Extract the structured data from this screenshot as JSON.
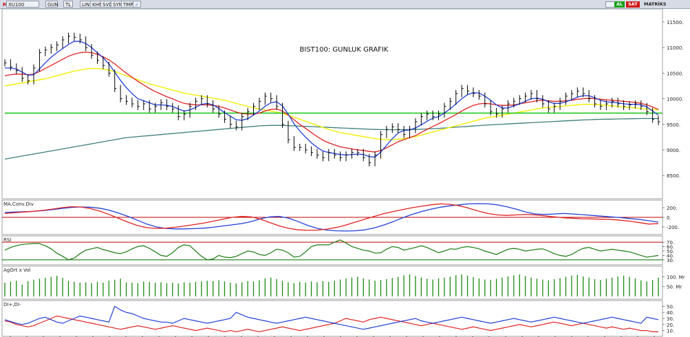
{
  "toolbar": {
    "logo": "M",
    "symbol": "XU100",
    "period": "GUN",
    "currency": "TL",
    "buttons": [
      "LIN",
      "KHN",
      "SVD",
      "SYM",
      "TMP"
    ],
    "al_label": "AL",
    "sat_label": "SAT",
    "matriks_label": "MATRİKS"
  },
  "colors": {
    "price_bars": "#000000",
    "ma_fast": "#1f3fd6",
    "ma_mid": "#e02020",
    "ma_slow": "#f2f000",
    "ma_long": "#3a7d7a",
    "support": "#00c000",
    "macd_blue": "#1f3fd6",
    "macd_red": "#e02020",
    "rsi": "#1a7a10",
    "vol": "#1a8a10",
    "di_plus": "#1f3fd6",
    "di_minus": "#e02020",
    "al_badge": "#18a018",
    "sat_badge": "#d01818"
  },
  "chart_data": [
    {
      "type": "line",
      "title": "BIST100: GUNLUK GRAFIK",
      "ylim": [
        8100,
        11700
      ],
      "yticks": [
        "11500.",
        "11000.",
        "10500.",
        "10000.",
        "9500.",
        "9000.",
        "8500."
      ],
      "ytick_values": [
        11500,
        11000,
        10500,
        10000,
        9500,
        9000,
        8500
      ],
      "support_level": 9720,
      "close": [
        10700,
        10620,
        10550,
        10400,
        10350,
        10600,
        10900,
        10950,
        11000,
        11050,
        11150,
        11220,
        11200,
        11150,
        11000,
        10850,
        10750,
        10650,
        10500,
        10200,
        10000,
        9950,
        9900,
        9850,
        9900,
        9800,
        9850,
        9920,
        9850,
        9800,
        9650,
        9700,
        9850,
        9950,
        10000,
        9900,
        9800,
        9700,
        9600,
        9500,
        9450,
        9650,
        9750,
        9850,
        9950,
        10050,
        10000,
        9850,
        9500,
        9200,
        9050,
        9050,
        9000,
        8950,
        8900,
        8850,
        8950,
        8900,
        8850,
        8900,
        8950,
        8950,
        8850,
        8750,
        8900,
        9300,
        9400,
        9450,
        9400,
        9300,
        9400,
        9550,
        9650,
        9700,
        9650,
        9700,
        9850,
        9950,
        10100,
        10200,
        10150,
        10100,
        10050,
        9900,
        9750,
        9700,
        9800,
        9900,
        9950,
        10000,
        10050,
        10100,
        10000,
        9900,
        9800,
        9850,
        9950,
        10050,
        10100,
        10150,
        10100,
        10000,
        9900,
        9850,
        9900,
        9950,
        9900,
        9850,
        9880,
        9900,
        9850,
        9750,
        9600,
        9550
      ],
      "ma_fast": [
        10600,
        10600,
        10580,
        10520,
        10460,
        10470,
        10580,
        10700,
        10810,
        10900,
        10980,
        11060,
        11120,
        11120,
        11080,
        11000,
        10900,
        10800,
        10680,
        10520,
        10360,
        10220,
        10100,
        10000,
        9960,
        9920,
        9880,
        9880,
        9870,
        9850,
        9800,
        9760,
        9780,
        9830,
        9890,
        9910,
        9880,
        9810,
        9730,
        9660,
        9590,
        9580,
        9610,
        9680,
        9760,
        9850,
        9920,
        9940,
        9860,
        9700,
        9510,
        9370,
        9250,
        9140,
        9050,
        8980,
        8950,
        8930,
        8910,
        8900,
        8910,
        8920,
        8910,
        8870,
        8860,
        8960,
        9090,
        9220,
        9330,
        9380,
        9390,
        9430,
        9490,
        9560,
        9620,
        9650,
        9720,
        9800,
        9900,
        10000,
        10080,
        10120,
        10110,
        10050,
        9970,
        9880,
        9820,
        9820,
        9860,
        9900,
        9950,
        10000,
        10010,
        9990,
        9940,
        9910,
        9910,
        9940,
        9980,
        10030,
        10060,
        10060,
        10020,
        9970,
        9940,
        9930,
        9920,
        9900,
        9890,
        9890,
        9880,
        9840,
        9760,
        9680
      ],
      "ma_mid": [
        10450,
        10470,
        10480,
        10480,
        10470,
        10480,
        10530,
        10590,
        10650,
        10710,
        10770,
        10830,
        10870,
        10900,
        10910,
        10900,
        10870,
        10820,
        10760,
        10680,
        10590,
        10500,
        10420,
        10340,
        10270,
        10200,
        10140,
        10090,
        10040,
        10000,
        9950,
        9910,
        9890,
        9880,
        9880,
        9880,
        9870,
        9850,
        9820,
        9780,
        9740,
        9710,
        9700,
        9700,
        9720,
        9760,
        9790,
        9800,
        9760,
        9680,
        9590,
        9500,
        9420,
        9340,
        9260,
        9190,
        9140,
        9100,
        9060,
        9040,
        9020,
        9000,
        8990,
        8970,
        8960,
        8990,
        9040,
        9100,
        9160,
        9200,
        9240,
        9280,
        9340,
        9400,
        9460,
        9510,
        9570,
        9630,
        9690,
        9760,
        9820,
        9870,
        9900,
        9910,
        9900,
        9880,
        9870,
        9870,
        9880,
        9900,
        9920,
        9940,
        9960,
        9970,
        9960,
        9950,
        9950,
        9960,
        9970,
        9990,
        10000,
        10010,
        10000,
        9990,
        9980,
        9970,
        9960,
        9950,
        9940,
        9930,
        9910,
        9880,
        9840,
        9790
      ],
      "ma_slow": [
        10250,
        10270,
        10290,
        10310,
        10330,
        10350,
        10370,
        10390,
        10420,
        10450,
        10480,
        10510,
        10540,
        10560,
        10580,
        10590,
        10590,
        10580,
        10560,
        10530,
        10490,
        10450,
        10410,
        10370,
        10330,
        10290,
        10260,
        10230,
        10200,
        10170,
        10140,
        10110,
        10090,
        10070,
        10050,
        10030,
        10010,
        9990,
        9970,
        9940,
        9910,
        9880,
        9850,
        9820,
        9800,
        9780,
        9760,
        9740,
        9710,
        9680,
        9640,
        9600,
        9560,
        9520,
        9480,
        9440,
        9400,
        9370,
        9340,
        9320,
        9300,
        9280,
        9260,
        9240,
        9220,
        9210,
        9200,
        9200,
        9210,
        9220,
        9240,
        9260,
        9290,
        9320,
        9350,
        9380,
        9410,
        9440,
        9470,
        9500,
        9530,
        9560,
        9590,
        9620,
        9640,
        9660,
        9680,
        9700,
        9720,
        9740,
        9760,
        9780,
        9800,
        9820,
        9830,
        9840,
        9850,
        9860,
        9870,
        9880,
        9890,
        9890,
        9890,
        9880,
        9870,
        9860,
        9850,
        9840,
        9830,
        9820,
        9810,
        9800,
        9790,
        9780
      ],
      "ma_long": [
        8820,
        8840,
        8860,
        8880,
        8900,
        8920,
        8940,
        8960,
        8980,
        9000,
        9020,
        9040,
        9060,
        9080,
        9100,
        9120,
        9140,
        9160,
        9180,
        9200,
        9220,
        9240,
        9250,
        9260,
        9270,
        9280,
        9290,
        9300,
        9310,
        9320,
        9330,
        9340,
        9350,
        9360,
        9370,
        9380,
        9390,
        9400,
        9410,
        9420,
        9430,
        9440,
        9450,
        9460,
        9470,
        9475,
        9480,
        9480,
        9480,
        9475,
        9470,
        9465,
        9460,
        9455,
        9450,
        9445,
        9440,
        9435,
        9430,
        9425,
        9420,
        9415,
        9410,
        9405,
        9400,
        9398,
        9396,
        9395,
        9395,
        9396,
        9398,
        9400,
        9405,
        9410,
        9415,
        9420,
        9428,
        9436,
        9444,
        9452,
        9460,
        9468,
        9476,
        9484,
        9490,
        9496,
        9502,
        9508,
        9514,
        9520,
        9526,
        9532,
        9538,
        9544,
        9550,
        9556,
        9562,
        9568,
        9574,
        9580,
        9585,
        9590,
        9595,
        9598,
        9600,
        9602,
        9604,
        9606,
        9608,
        9610,
        9612,
        9612,
        9612,
        9612
      ]
    },
    {
      "type": "line",
      "title": "MA.Conv.Div",
      "ylim": [
        -300,
        300
      ],
      "yticks": [
        "200.",
        "0.",
        "-200."
      ],
      "ytick_values": [
        200,
        0,
        -200
      ],
      "series": [
        {
          "values": [
            100,
            110,
            115,
            125,
            140,
            160,
            185,
            205,
            215,
            210,
            190,
            150,
            90,
            20,
            -60,
            -140,
            -200,
            -230,
            -240,
            -240,
            -235,
            -225,
            -205,
            -180,
            -155,
            -130,
            -90,
            -30,
            10,
            20,
            -20,
            -90,
            -170,
            -230,
            -265,
            -280,
            -285,
            -280,
            -260,
            -220,
            -160,
            -90,
            -10,
            60,
            120,
            170,
            210,
            240,
            260,
            280,
            285,
            280,
            260,
            220,
            170,
            110,
            70,
            60,
            70,
            80,
            70,
            55,
            40,
            25,
            10,
            -5,
            -25,
            -45,
            -70,
            -100
          ]
        },
        {
          "values": [
            80,
            95,
            110,
            125,
            145,
            170,
            200,
            220,
            215,
            185,
            130,
            60,
            -20,
            -100,
            -170,
            -215,
            -230,
            -225,
            -205,
            -180,
            -150,
            -120,
            -80,
            -40,
            0,
            20,
            10,
            -40,
            -110,
            -180,
            -230,
            -260,
            -270,
            -265,
            -245,
            -210,
            -160,
            -100,
            -40,
            20,
            75,
            120,
            160,
            200,
            230,
            260,
            280,
            270,
            240,
            190,
            130,
            80,
            50,
            40,
            50,
            60,
            50,
            30,
            10,
            -10,
            -20,
            -30,
            -35,
            -40,
            -45,
            -60,
            -80,
            -110,
            -140,
            -130
          ]
        }
      ]
    },
    {
      "type": "line",
      "title": "RSI",
      "ylim": [
        25,
        78
      ],
      "yticks": [
        "70.",
        "60.",
        "50.",
        "40.",
        "30."
      ],
      "ytick_values": [
        70,
        60,
        50,
        40,
        30
      ],
      "bands": [
        70,
        30
      ],
      "values": [
        52,
        58,
        62,
        65,
        66,
        67,
        67,
        62,
        55,
        45,
        38,
        30,
        34,
        44,
        52,
        55,
        58,
        53,
        50,
        46,
        44,
        48,
        55,
        60,
        62,
        56,
        48,
        40,
        38,
        46,
        58,
        64,
        62,
        50,
        38,
        30,
        32,
        40,
        36,
        35,
        38,
        44,
        50,
        48,
        42,
        40,
        46,
        54,
        52,
        46,
        36,
        38,
        48,
        60,
        64,
        64,
        64,
        70,
        75,
        68,
        60,
        56,
        52,
        50,
        45,
        46,
        54,
        60,
        58,
        52,
        55,
        58,
        62,
        58,
        52,
        46,
        50,
        55,
        54,
        58,
        60,
        58,
        55,
        50,
        46,
        42,
        48,
        54,
        56,
        54,
        50,
        52,
        54,
        55,
        50,
        44,
        40,
        38,
        42,
        50,
        56,
        58,
        54,
        50,
        52,
        54,
        52,
        50,
        48,
        44,
        40,
        36,
        38,
        40
      ]
    },
    {
      "type": "bar",
      "title": "AgOrt x Vol",
      "ylim": [
        0,
        140
      ],
      "yticks": [
        "100. Mr",
        "50. Mr"
      ],
      "ytick_values": [
        100,
        50
      ],
      "values": [
        70,
        75,
        80,
        60,
        78,
        85,
        90,
        95,
        100,
        105,
        95,
        80,
        75,
        70,
        72,
        68,
        74,
        70,
        80,
        85,
        90,
        72,
        70,
        68,
        75,
        74,
        70,
        72,
        68,
        70,
        66,
        72,
        70,
        74,
        76,
        80,
        78,
        82,
        76,
        70,
        66,
        72,
        78,
        76,
        82,
        92,
        96,
        88,
        80,
        72,
        68,
        74,
        70,
        76,
        72,
        78,
        74,
        80,
        86,
        92,
        96,
        100,
        92,
        86,
        80,
        84,
        88,
        94,
        100,
        108,
        112,
        104,
        96,
        90,
        86,
        92,
        96,
        100,
        108,
        112,
        106,
        98,
        92,
        86,
        84,
        90,
        96,
        102,
        108,
        112,
        104,
        96,
        90,
        86,
        82,
        88,
        94,
        100,
        106,
        110,
        102,
        96,
        88,
        84,
        90,
        96,
        102,
        106,
        100,
        92,
        82,
        76,
        84,
        96
      ]
    },
    {
      "type": "line",
      "title": "DI+,DI-",
      "ylim": [
        5,
        55
      ],
      "yticks": [
        "50.",
        "40.",
        "30.",
        "20.",
        "10."
      ],
      "ytick_values": [
        50,
        40,
        30,
        20,
        10
      ],
      "series": [
        {
          "values": [
            28,
            25,
            22,
            20,
            22,
            26,
            30,
            32,
            28,
            24,
            22,
            26,
            30,
            34,
            32,
            30,
            28,
            26,
            24,
            50,
            44,
            40,
            38,
            34,
            30,
            28,
            26,
            24,
            24,
            22,
            26,
            30,
            28,
            26,
            24,
            22,
            24,
            26,
            28,
            30,
            40,
            36,
            32,
            30,
            28,
            26,
            24,
            22,
            24,
            26,
            28,
            30,
            32,
            30,
            28,
            26,
            24,
            22,
            20,
            18,
            16,
            14,
            12,
            14,
            16,
            18,
            20,
            22,
            24,
            26,
            28,
            30,
            26,
            24,
            22,
            24,
            26,
            28,
            30,
            32,
            30,
            28,
            26,
            24,
            22,
            24,
            26,
            28,
            30,
            28,
            26,
            24,
            26,
            28,
            30,
            32,
            30,
            28,
            26,
            24,
            22,
            24,
            26,
            28,
            30,
            32,
            30,
            28,
            26,
            24,
            22,
            32,
            30,
            28
          ]
        },
        {
          "values": [
            26,
            24,
            20,
            18,
            16,
            18,
            22,
            26,
            30,
            34,
            32,
            30,
            28,
            26,
            24,
            22,
            20,
            18,
            16,
            14,
            12,
            14,
            16,
            18,
            16,
            14,
            12,
            14,
            16,
            18,
            16,
            14,
            12,
            10,
            12,
            14,
            12,
            10,
            8,
            10,
            8,
            10,
            12,
            10,
            8,
            10,
            12,
            14,
            16,
            14,
            12,
            10,
            12,
            14,
            16,
            18,
            20,
            22,
            26,
            30,
            28,
            26,
            24,
            28,
            30,
            32,
            30,
            28,
            26,
            24,
            22,
            20,
            18,
            20,
            22,
            20,
            18,
            16,
            14,
            12,
            14,
            16,
            14,
            12,
            10,
            12,
            14,
            16,
            18,
            20,
            18,
            16,
            18,
            20,
            22,
            24,
            22,
            20,
            18,
            20,
            22,
            20,
            18,
            16,
            14,
            16,
            14,
            12,
            14,
            12,
            10,
            10,
            8,
            8
          ]
        }
      ]
    }
  ]
}
